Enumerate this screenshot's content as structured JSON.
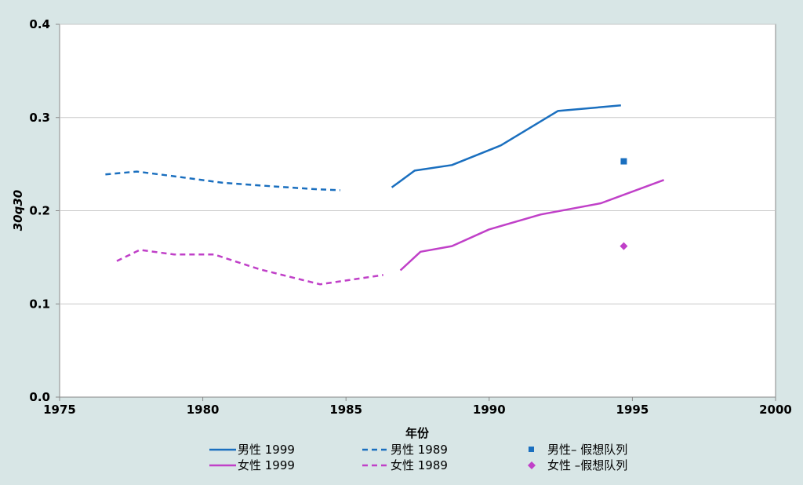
{
  "chart_data": {
    "type": "line",
    "title": "",
    "xlabel": "年份",
    "ylabel": "30q30",
    "xlim": [
      1975,
      2000
    ],
    "ylim": [
      0.0,
      0.4
    ],
    "x_ticks": [
      1975,
      1980,
      1985,
      1990,
      1995,
      2000
    ],
    "y_ticks": [
      "0.0",
      "0.1",
      "0.2",
      "0.3",
      "0.4"
    ],
    "y_tick_values": [
      0.0,
      0.1,
      0.2,
      0.3,
      0.4
    ],
    "grid": "horizontal",
    "legend_position": "bottom",
    "series": [
      {
        "name": "男性 1999",
        "color": "#1a6fbf",
        "style": "solid",
        "marker": "none",
        "points": [
          [
            1986.6,
            0.225
          ],
          [
            1987.4,
            0.243
          ],
          [
            1988.7,
            0.249
          ],
          [
            1990.4,
            0.27
          ],
          [
            1992.4,
            0.307
          ],
          [
            1994.6,
            0.313
          ]
        ]
      },
      {
        "name": "男性 1989",
        "color": "#1a6fbf",
        "style": "dashed",
        "marker": "none",
        "points": [
          [
            1976.6,
            0.239
          ],
          [
            1977.7,
            0.242
          ],
          [
            1979.0,
            0.237
          ],
          [
            1980.7,
            0.23
          ],
          [
            1982.5,
            0.226
          ],
          [
            1984.0,
            0.223
          ],
          [
            1984.8,
            0.222
          ]
        ]
      },
      {
        "name": "男性– 假想队列",
        "color": "#1a6fbf",
        "style": "none",
        "marker": "square",
        "points": [
          [
            1994.7,
            0.253
          ]
        ]
      },
      {
        "name": "女性 1999",
        "color": "#c040c8",
        "style": "solid",
        "marker": "none",
        "points": [
          [
            1986.9,
            0.136
          ],
          [
            1987.6,
            0.156
          ],
          [
            1988.7,
            0.162
          ],
          [
            1990.0,
            0.18
          ],
          [
            1991.8,
            0.196
          ],
          [
            1993.9,
            0.208
          ],
          [
            1996.1,
            0.233
          ]
        ]
      },
      {
        "name": "女性 1989",
        "color": "#c040c8",
        "style": "dashed",
        "marker": "none",
        "points": [
          [
            1977.0,
            0.146
          ],
          [
            1977.8,
            0.158
          ],
          [
            1979.0,
            0.153
          ],
          [
            1980.4,
            0.153
          ],
          [
            1982.0,
            0.137
          ],
          [
            1984.1,
            0.121
          ],
          [
            1986.3,
            0.131
          ]
        ]
      },
      {
        "name": "女性 –假想队列",
        "color": "#c040c8",
        "style": "none",
        "marker": "diamond",
        "points": [
          [
            1994.7,
            0.162
          ]
        ]
      }
    ]
  }
}
